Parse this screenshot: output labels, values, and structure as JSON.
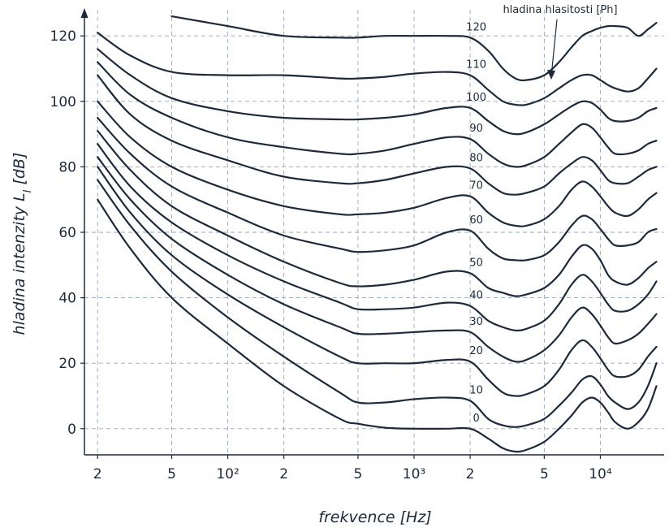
{
  "chart_data": {
    "type": "line",
    "xscale": "log",
    "xlim": [
      17,
      22000
    ],
    "ylim": [
      -8,
      128
    ],
    "xlabel": "frekvence [Hz]",
    "ylabel": "hladina intenzity L_I [dB]",
    "grid": true,
    "y_ticks": [
      0,
      20,
      40,
      60,
      80,
      100,
      120
    ],
    "y_tick_labels": [
      "0",
      "20",
      "40",
      "60",
      "80",
      "100",
      "120"
    ],
    "x_ticks": [
      20,
      50,
      100,
      200,
      500,
      1000,
      2000,
      5000,
      10000
    ],
    "x_tick_labels": [
      "2",
      "5",
      "10²",
      "2",
      "5",
      "10³",
      "2",
      "5",
      "10⁴"
    ],
    "annotation": "hladina hlasitosti [Ph]",
    "colors": {
      "curve": "#1e2a3a",
      "grid": "#9aa6b8",
      "text": "#1e2a3a"
    },
    "x": [
      20,
      30,
      50,
      100,
      200,
      400,
      500,
      700,
      1000,
      1500,
      2000,
      2500,
      3000,
      3500,
      4000,
      5000,
      6000,
      7000,
      8000,
      9000,
      10000,
      11000,
      12000,
      14000,
      16000,
      18000,
      20000
    ],
    "series": [
      {
        "name": "0",
        "label": "0",
        "values": [
          70,
          55,
          40,
          26,
          13,
          3,
          1.5,
          0.3,
          0,
          0,
          0,
          -3,
          -6,
          -7,
          -6.5,
          -4,
          0,
          4,
          8,
          9.5,
          8,
          5,
          2,
          0,
          2,
          6,
          13
        ]
      },
      {
        "name": "10",
        "label": "10",
        "values": [
          76,
          62,
          48,
          34,
          22,
          11,
          8,
          8,
          9,
          9.5,
          8.5,
          3,
          1,
          0.5,
          1,
          3,
          7,
          11,
          15,
          16,
          13.5,
          10,
          8,
          6,
          8,
          13,
          20
        ]
      },
      {
        "name": "20",
        "label": "20",
        "values": [
          80,
          66,
          53,
          41,
          31,
          22,
          20,
          20,
          20,
          21,
          20.5,
          15,
          11,
          10,
          10.5,
          13,
          18,
          24,
          27,
          25,
          21.5,
          18,
          16,
          16,
          18,
          22,
          25
        ]
      },
      {
        "name": "30",
        "label": "30",
        "values": [
          83,
          70,
          58,
          47,
          38,
          31,
          29,
          29,
          29.5,
          30,
          29.5,
          25,
          22,
          20.5,
          21,
          24,
          28.5,
          34,
          37,
          35,
          31.5,
          28,
          26,
          27,
          29,
          32,
          35
        ]
      },
      {
        "name": "40",
        "label": "40",
        "values": [
          87,
          74,
          63,
          53,
          45,
          38.5,
          36.5,
          36.5,
          37,
          38.5,
          37.5,
          33,
          31,
          30,
          30.5,
          33,
          38,
          44,
          47,
          45,
          41.5,
          38,
          36,
          36,
          38,
          41,
          45
        ]
      },
      {
        "name": "50",
        "label": "50",
        "values": [
          91,
          79,
          68,
          59,
          51,
          44.5,
          43.5,
          44,
          45.5,
          48,
          47.5,
          43,
          41.5,
          40.5,
          41,
          43,
          47,
          52.5,
          56,
          55,
          51.5,
          47,
          45,
          44,
          46,
          49,
          51
        ]
      },
      {
        "name": "60",
        "label": "60",
        "values": [
          95,
          84,
          74,
          66,
          59,
          55,
          54,
          54.5,
          56,
          60,
          60.5,
          55,
          52,
          51.5,
          51.5,
          53,
          57,
          62,
          65,
          64,
          61,
          58,
          56,
          56,
          57,
          60,
          61
        ]
      },
      {
        "name": "70",
        "label": "70",
        "values": [
          100,
          89,
          80,
          73,
          68,
          65.5,
          65.5,
          66,
          67.5,
          70.5,
          71,
          66,
          63,
          62,
          62,
          64,
          68,
          73,
          75.5,
          74,
          71,
          68,
          66,
          65,
          67,
          70,
          72
        ]
      },
      {
        "name": "80",
        "label": "80",
        "values": [
          108,
          96,
          88,
          82,
          77,
          75,
          75,
          76,
          78,
          80,
          79.5,
          75,
          72,
          71.5,
          72,
          74,
          78,
          81,
          83,
          82,
          79,
          76,
          75,
          75,
          77,
          79,
          80
        ]
      },
      {
        "name": "90",
        "label": "90",
        "values": [
          112,
          102,
          95,
          89,
          86,
          84,
          84,
          85,
          87,
          89,
          88.5,
          84,
          81,
          80,
          80.5,
          83,
          87,
          90.5,
          93,
          92,
          89,
          86,
          84,
          84,
          85,
          87,
          88
        ]
      },
      {
        "name": "100",
        "label": "100",
        "values": [
          116,
          108,
          101,
          97,
          95,
          94.5,
          94.5,
          95,
          96,
          98,
          98,
          94,
          91,
          90,
          90.5,
          93,
          96,
          98.5,
          100,
          99.5,
          97.5,
          95,
          94,
          94,
          95,
          97,
          98
        ]
      },
      {
        "name": "110",
        "label": "110",
        "values": [
          121,
          114,
          109,
          108,
          108,
          107,
          107,
          107.5,
          108.5,
          109,
          108,
          103.5,
          100,
          99,
          99,
          101,
          104,
          106.5,
          108,
          108,
          106.5,
          105,
          104,
          103,
          104,
          107,
          110
        ]
      },
      {
        "name": "120",
        "label": "120",
        "values": [
          null,
          null,
          126,
          123,
          120,
          119.5,
          119.5,
          120,
          120,
          120,
          119.5,
          115.5,
          110,
          107,
          106.5,
          108,
          112,
          116.5,
          120,
          121.5,
          122.5,
          123,
          123,
          122.5,
          120,
          122,
          124
        ]
      }
    ]
  }
}
